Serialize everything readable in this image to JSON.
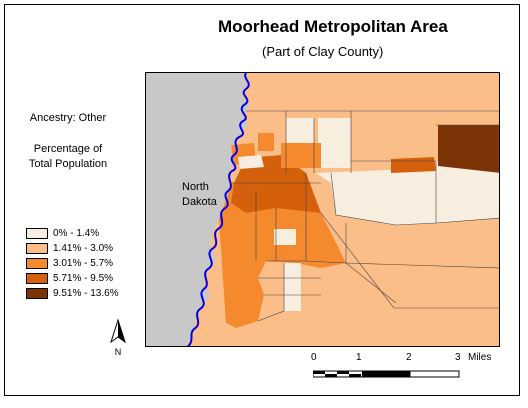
{
  "title": "Moorhead Metropolitan Area",
  "subtitle": "(Part of Clay County)",
  "ancestry_label": "Ancestry: Other",
  "pct_label_line1": "Percentage of",
  "pct_label_line2": "Total Population",
  "legend": [
    {
      "label": "0% - 1.4%",
      "color": "#f7eee0"
    },
    {
      "label": "1.41% - 3.0%",
      "color": "#fbbe88"
    },
    {
      "label": "3.01% - 5.7%",
      "color": "#f5892e"
    },
    {
      "label": "5.71% - 9.5%",
      "color": "#d5600c"
    },
    {
      "label": "9.51% - 13.6%",
      "color": "#7c3306"
    }
  ],
  "colors": {
    "nd_gray": "#c8c8c8",
    "river": "#0000e6",
    "outline": "#444444"
  },
  "north_dakota_line1": "North",
  "north_dakota_line2": "Dakota",
  "north_arrow_letter": "N",
  "scale": {
    "ticks": [
      "0",
      "1",
      "2",
      "3"
    ],
    "unit": "Miles"
  }
}
